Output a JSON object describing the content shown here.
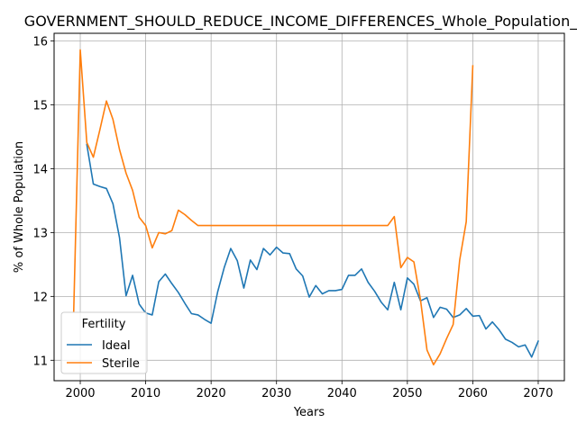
{
  "chart_data": {
    "type": "line",
    "title": "GOVERNMENT_SHOULD_REDUCE_INCOME_DIFFERENCES_Whole_Population_Sc",
    "xlabel": "Years",
    "ylabel": "% of Whole Population",
    "xlim": [
      1996,
      2074
    ],
    "ylim": [
      10.68,
      16.12
    ],
    "xticks": [
      2000,
      2010,
      2020,
      2030,
      2040,
      2050,
      2060,
      2070
    ],
    "yticks": [
      11,
      12,
      13,
      14,
      15,
      16
    ],
    "grid": true,
    "legend": {
      "title": "Fertility",
      "placement": "lower-left"
    },
    "series": [
      {
        "name": "Ideal",
        "color": "#1f77b4",
        "x": [
          2001,
          2002,
          2003,
          2004,
          2005,
          2006,
          2007,
          2008,
          2009,
          2010,
          2011,
          2012,
          2013,
          2014,
          2015,
          2016,
          2017,
          2018,
          2019,
          2020,
          2021,
          2022,
          2023,
          2024,
          2025,
          2026,
          2027,
          2028,
          2029,
          2030,
          2031,
          2032,
          2033,
          2034,
          2035,
          2036,
          2037,
          2038,
          2039,
          2040,
          2041,
          2042,
          2043,
          2044,
          2045,
          2046,
          2047,
          2048,
          2049,
          2050,
          2051,
          2052,
          2053,
          2054,
          2055,
          2056,
          2057,
          2058,
          2059,
          2060,
          2061,
          2062,
          2063,
          2064,
          2065,
          2066,
          2067,
          2068,
          2069,
          2070
        ],
        "y": [
          14.38,
          13.76,
          13.72,
          13.69,
          13.45,
          12.92,
          12.01,
          12.33,
          11.88,
          11.74,
          11.71,
          12.23,
          12.35,
          12.2,
          12.06,
          11.89,
          11.73,
          11.71,
          11.64,
          11.58,
          12.07,
          12.45,
          12.75,
          12.56,
          12.13,
          12.57,
          12.42,
          12.75,
          12.65,
          12.77,
          12.68,
          12.67,
          12.43,
          12.32,
          11.99,
          12.17,
          12.04,
          12.09,
          12.09,
          12.11,
          12.33,
          12.33,
          12.43,
          12.22,
          12.08,
          11.91,
          11.79,
          12.22,
          11.79,
          12.29,
          12.19,
          11.93,
          11.98,
          11.67,
          11.83,
          11.8,
          11.67,
          11.71,
          11.81,
          11.69,
          11.7,
          11.49,
          11.6,
          11.48,
          11.33,
          11.28,
          11.21,
          11.24,
          11.05,
          11.3
        ]
      },
      {
        "name": "Sterile",
        "color": "#ff7f0e",
        "x": [
          1999,
          2000,
          2001,
          2002,
          2003,
          2004,
          2005,
          2006,
          2007,
          2008,
          2009,
          2010,
          2011,
          2012,
          2013,
          2014,
          2015,
          2016,
          2017,
          2018,
          2019,
          2020,
          2021,
          2022,
          2023,
          2024,
          2025,
          2026,
          2027,
          2028,
          2029,
          2030,
          2031,
          2032,
          2033,
          2034,
          2035,
          2036,
          2037,
          2038,
          2039,
          2040,
          2041,
          2042,
          2043,
          2044,
          2045,
          2046,
          2047,
          2048,
          2049,
          2050,
          2051,
          2052,
          2053,
          2054,
          2055,
          2056,
          2057,
          2058,
          2059,
          2060
        ],
        "y": [
          11.77,
          15.86,
          14.41,
          14.18,
          14.61,
          15.06,
          14.77,
          14.3,
          13.93,
          13.66,
          13.24,
          13.11,
          12.76,
          13.0,
          12.98,
          13.03,
          13.35,
          13.28,
          13.19,
          13.11,
          13.11,
          13.11,
          13.11,
          13.11,
          13.11,
          13.11,
          13.11,
          13.11,
          13.11,
          13.11,
          13.11,
          13.11,
          13.11,
          13.11,
          13.11,
          13.11,
          13.11,
          13.11,
          13.11,
          13.11,
          13.11,
          13.11,
          13.11,
          13.11,
          13.11,
          13.11,
          13.11,
          13.11,
          13.11,
          13.25,
          12.45,
          12.61,
          12.54,
          11.95,
          11.16,
          10.93,
          11.1,
          11.34,
          11.56,
          12.57,
          13.17,
          15.61
        ]
      }
    ]
  }
}
